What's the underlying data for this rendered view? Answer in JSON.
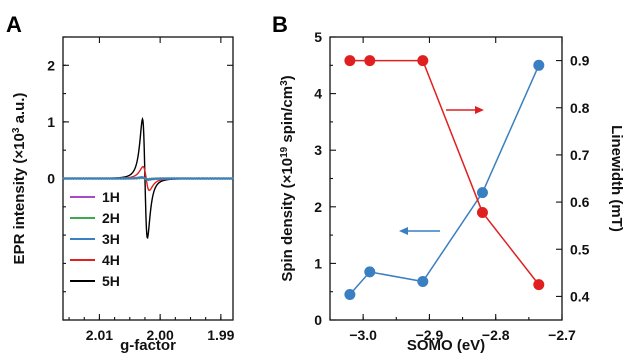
{
  "chart_data": [
    {
      "panel": "A",
      "type": "line",
      "xlabel": "g-factor",
      "ylabel": "EPR intensity (×10³ a.u.)",
      "xaxis_reversed": true,
      "xlim": [
        2.016,
        1.988
      ],
      "ylim": [
        -2.5,
        2.5
      ],
      "xticks": [
        "2.01",
        "2.00",
        "1.99"
      ],
      "xtick_values": [
        2.01,
        2.0,
        1.99
      ],
      "yticks": [
        "0",
        "1",
        "2"
      ],
      "ytick_values": [
        0,
        1,
        2
      ],
      "legend_position": "bottom-left",
      "series": [
        {
          "name": "1H",
          "color": "#a64ac9",
          "center": 2.0025,
          "amplitude": 0.02,
          "width": 0.0008
        },
        {
          "name": "2H",
          "color": "#3aaa4a",
          "center": 2.0025,
          "amplitude": 0.03,
          "width": 0.0008
        },
        {
          "name": "3H",
          "color": "#3a7fc1",
          "center": 2.0025,
          "amplitude": 0.05,
          "width": 0.0009
        },
        {
          "name": "4H",
          "color": "#e02020",
          "center": 2.0023,
          "amplitude": 0.42,
          "width": 0.0009
        },
        {
          "name": "5H",
          "color": "#000000",
          "center": 2.0025,
          "amplitude": 2.1,
          "width": 0.0007
        }
      ]
    },
    {
      "panel": "B",
      "type": "line",
      "xlabel": "SOMO (eV)",
      "ylabel_left": "Spin density (×10¹⁹ spin/cm³)",
      "ylabel_right": "Linewidth (mT)",
      "xlim": [
        -3.05,
        -2.7
      ],
      "ylim_left": [
        0,
        5
      ],
      "ylim_right": [
        0.35,
        0.95
      ],
      "xticks": [
        "−3.0",
        "−2.9",
        "−2.8",
        "−2.7"
      ],
      "xtick_values": [
        -3.0,
        -2.9,
        -2.8,
        -2.7
      ],
      "yticks_left": [
        "0",
        "1",
        "2",
        "3",
        "4",
        "5"
      ],
      "ytick_values_left": [
        0,
        1,
        2,
        3,
        4,
        5
      ],
      "yticks_right": [
        "0.4",
        "0.5",
        "0.6",
        "0.7",
        "0.8",
        "0.9"
      ],
      "ytick_values_right": [
        0.4,
        0.5,
        0.6,
        0.7,
        0.8,
        0.9
      ],
      "series": [
        {
          "axis": "left",
          "color": "#3a7fc1",
          "x": [
            -3.02,
            -2.99,
            -2.91,
            -2.82,
            -2.735
          ],
          "y": [
            0.45,
            0.85,
            0.68,
            2.25,
            4.5
          ]
        },
        {
          "axis": "right",
          "color": "#e02020",
          "x": [
            -3.02,
            -2.99,
            -2.91,
            -2.82,
            -2.735
          ],
          "y": [
            0.9,
            0.9,
            0.9,
            0.578,
            0.425
          ]
        }
      ]
    }
  ]
}
